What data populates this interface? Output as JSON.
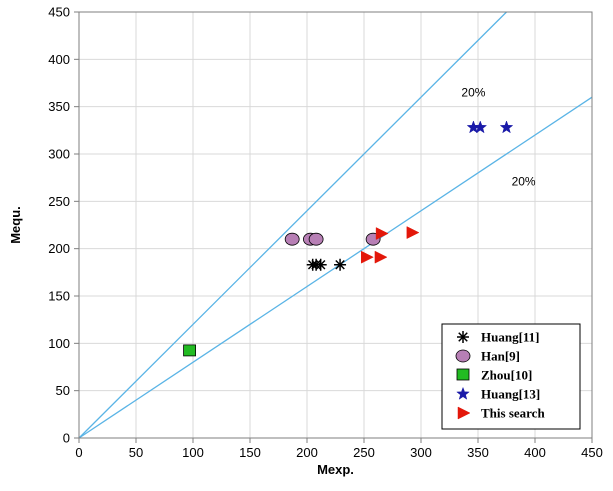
{
  "chart_data": {
    "type": "scatter",
    "title": "",
    "xlabel": "Mexp.",
    "ylabel": "Mequ.",
    "xlim": [
      0,
      450
    ],
    "ylim": [
      0,
      450
    ],
    "xticks": [
      0,
      50,
      100,
      150,
      200,
      250,
      300,
      350,
      400,
      450
    ],
    "yticks": [
      0,
      50,
      100,
      150,
      200,
      250,
      300,
      350,
      400,
      450
    ],
    "grid": true,
    "legend_position": "bottom-right",
    "series": [
      {
        "name": "Huang[11]",
        "marker": "asterisk",
        "color": "#000000",
        "points": [
          [
            205,
            183
          ],
          [
            208,
            183
          ],
          [
            212,
            183
          ],
          [
            229,
            183
          ]
        ]
      },
      {
        "name": "Han[9]",
        "marker": "circle",
        "color": "#b77fb5",
        "points": [
          [
            187,
            210
          ],
          [
            203,
            210
          ],
          [
            208,
            210
          ],
          [
            258,
            210
          ]
        ]
      },
      {
        "name": "Zhou[10]",
        "marker": "square",
        "color": "#22bb22",
        "points": [
          [
            97,
            92
          ]
        ]
      },
      {
        "name": "Huang[13]",
        "marker": "star",
        "color": "#1a1aa8",
        "points": [
          [
            346,
            328
          ],
          [
            352,
            328
          ],
          [
            375,
            328
          ]
        ]
      },
      {
        "name": "This search",
        "marker": "triangle-right",
        "color": "#e3170a",
        "points": [
          [
            252,
            191
          ],
          [
            264,
            191
          ],
          [
            265,
            216
          ],
          [
            292,
            217
          ]
        ]
      }
    ],
    "reference_lines": [
      {
        "label": "20%",
        "slope": 1.2,
        "color": "#5ab4e6"
      },
      {
        "label": "20%",
        "slope": 0.8,
        "color": "#5ab4e6"
      }
    ],
    "annotations": [
      {
        "text": "20%",
        "x": 346,
        "y": 365
      },
      {
        "text": "20%",
        "x": 390,
        "y": 271
      }
    ]
  }
}
